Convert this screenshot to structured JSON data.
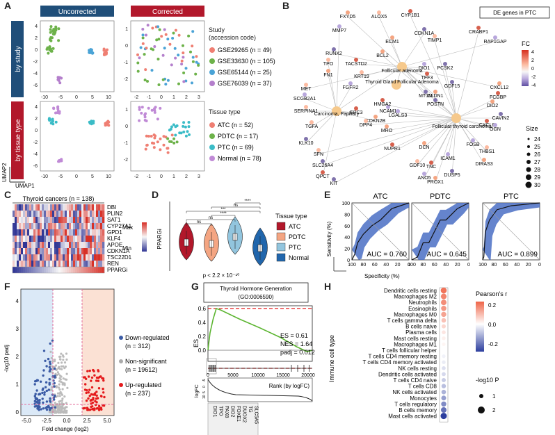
{
  "panel_letters": [
    "A",
    "B",
    "C",
    "D",
    "E",
    "F",
    "G",
    "H"
  ],
  "A": {
    "col_headers": [
      "Uncorrected",
      "Corrected"
    ],
    "row_labels": [
      "by study",
      "by tissue type"
    ],
    "xaxis": "UMAP1",
    "yaxis": "UMAP2",
    "unc_xticks": [
      "-10",
      "-5",
      "0",
      "5",
      "10"
    ],
    "cor_xticks": [
      "-2",
      "-1",
      "0",
      "1",
      "2",
      "3"
    ],
    "unc_yticks": [
      "4",
      "2",
      "0",
      "-2",
      "-4",
      "-6"
    ],
    "cor_yticks": [
      "1",
      "0",
      "-1",
      "-2"
    ],
    "study_title_line1": "Study",
    "study_title_line2": "(accession code)",
    "study_legend": [
      {
        "label": "GSE29265 (n = 49)",
        "color": "#ef7f73"
      },
      {
        "label": "GSE33630 (n = 105)",
        "color": "#6db24a"
      },
      {
        "label": "GSE65144 (n = 25)",
        "color": "#4aa3d6"
      },
      {
        "label": "GSE76039 (n = 37)",
        "color": "#b47fcc"
      }
    ],
    "tissue_title": "Tissue type",
    "tissue_legend": [
      {
        "label": "ATC (n = 52)",
        "color": "#ef7f73"
      },
      {
        "label": "PDTC (n = 17)",
        "color": "#6db24a"
      },
      {
        "label": "PTC (n = 69)",
        "color": "#3bbcc7"
      },
      {
        "label": "Normal (n = 78)",
        "color": "#c08ad6"
      }
    ],
    "header_blue": "#1f4e79",
    "header_red": "#b2182b"
  },
  "B": {
    "title": "DE genes in PTC",
    "hubs": [
      "Follicular adenoma",
      "Thyroid Gland Follicular Adenoma",
      "Carcinoma, Papillary",
      "Follicular thyroid carcinoma"
    ],
    "genes": [
      "FXYD5",
      "ALOX5",
      "CYP1B1",
      "MMP7",
      "CDKN1A",
      "ECM1",
      "TIMP1",
      "CRABP1",
      "RAP1GAP",
      "RUNX2",
      "BCL2",
      "TPO",
      "TACSTD2",
      "DIO1",
      "PCSK2",
      "FN1",
      "KRT19",
      "TFF3",
      "FGFR2",
      "GDF15",
      "CXCL12",
      "MET",
      "FCGBP",
      "SCGB2A1",
      "MT1M",
      "CLDN1",
      "SERPINA1",
      "GPC3",
      "NCAM1",
      "POSTN",
      "DIO2",
      "TGFA",
      "HMGA2",
      "LGALS3",
      "CAVIN2",
      "CDKN2B",
      "DPP4",
      "CXCL8",
      "OGN",
      "KLK10",
      "MRO",
      "SFN",
      "NUPR1",
      "FOSB",
      "SLC26A4",
      "DCN",
      "THBS1",
      "QPCT",
      "ICAM1",
      "KIT",
      "DIRAS3",
      "GDF10",
      "TNC",
      "ANO5",
      "DUSP5",
      "PROX1"
    ],
    "fc_title": "FC",
    "fc_ticks": [
      "4",
      "2",
      "0",
      "-2",
      "-4"
    ],
    "size_title": "Size",
    "size_ticks": [
      "24",
      "25",
      "26",
      "27",
      "28",
      "29",
      "30"
    ]
  },
  "C": {
    "title": "Thyroid cancers (n = 138)",
    "genes": [
      "DBI",
      "PLIN2",
      "SAT1",
      "CYP27A1",
      "GPD1",
      "KLF4",
      "APOE",
      "CDKN1A",
      "TSC22D1",
      "REN",
      "PPARGi"
    ],
    "max_label": "Max",
    "min_label": "Min"
  },
  "D": {
    "ylabel": "PPARGi",
    "legend_title": "Tissue type",
    "legend": [
      {
        "label": "ATC",
        "color": "#b2182b"
      },
      {
        "label": "PDTC",
        "color": "#f4a582"
      },
      {
        "label": "PTC",
        "color": "#92c5de"
      },
      {
        "label": "Normal",
        "color": "#2166ac"
      }
    ],
    "sig_labels": [
      "ns",
      "ns",
      "****",
      "***",
      "ns",
      "****"
    ],
    "pvalue": "p < 2.2 × 10⁻¹⁰"
  },
  "E": {
    "panels": [
      {
        "title": "ATC",
        "auc": "AUC = 0.760"
      },
      {
        "title": "PDTC",
        "auc": "AUC = 0.645"
      },
      {
        "title": "PTC",
        "auc": "AUC = 0.899"
      }
    ],
    "yticks": [
      "100",
      "80",
      "60",
      "40",
      "20",
      "0"
    ],
    "xticks": [
      "100",
      "80",
      "60",
      "40",
      "20",
      "0"
    ],
    "ylabel": "Sensitivity (%)",
    "xlabel": "Specificity (%)"
  },
  "F": {
    "ylabel": "-log10 padj",
    "xlabel": "Fold change (log2)",
    "xticks": [
      "-5.0",
      "-2.5",
      "0.0",
      "2.5",
      "5.0"
    ],
    "yticks": [
      "4",
      "3",
      "2",
      "1",
      "0"
    ],
    "legend": [
      {
        "label": "Down-regulated",
        "n": "(n = 312)",
        "color": "#3b5ba5"
      },
      {
        "label": "Non-significant",
        "n": "(n = 19612)",
        "color": "#aaaaaa"
      },
      {
        "label": "Up-regulated",
        "n": "(n = 237)",
        "color": "#e41a1c"
      }
    ]
  },
  "G": {
    "title_line1": "Thyroid Hormone Generation",
    "title_line2": "(GO:0006590)",
    "es": "ES = 0.61",
    "nes": "NES = 1.64",
    "padj": "padj = 0.012",
    "ylabel": "ES",
    "yticks": [
      "0.6",
      "0.4",
      "0.2",
      "0.0"
    ],
    "xticks": [
      "0",
      "5000",
      "10000",
      "15000",
      "20000"
    ],
    "xlabel": "Rank (by logFC)",
    "logfc_label": "logFC",
    "logfc_ticks": [
      "10",
      "5",
      "0",
      "-5"
    ],
    "genes": [
      "DIO1",
      "TPO",
      "PAX8",
      "DIO2",
      "FOXE1",
      "DUOX2",
      "TG",
      "SLC5A5"
    ]
  },
  "H": {
    "ylabel": "Immune cell type",
    "cells": [
      "Dendritic cells resting",
      "Macrophages M2",
      "Neutrophils",
      "Eosinophils",
      "Macrophages M0",
      "T cells gamma delta",
      "B cells naive",
      "Plasma cells",
      "Mast cells resting",
      "Macrophages M1",
      "T cells follicular helper",
      "T cells CD4 memory resting",
      "T cells CD4 memory activated",
      "NK cells resting",
      "Dendritic cells activated",
      "T cells CD4 naive",
      "T cells CD8",
      "NK cells activated",
      "Monocytes",
      "T cells regulatory",
      "B cells memory",
      "Mast cells activated"
    ],
    "r_values": [
      0.27,
      0.24,
      0.22,
      0.2,
      0.18,
      0.12,
      0.08,
      0.05,
      0.03,
      0.02,
      0.0,
      -0.02,
      -0.03,
      -0.05,
      -0.06,
      -0.08,
      -0.1,
      -0.12,
      -0.15,
      -0.18,
      -0.22,
      -0.31
    ],
    "corr_title": "Pearson's r",
    "corr_ticks": [
      "0.2",
      "0.0",
      "-0.2"
    ],
    "size_title": "-log10 P",
    "size_ticks": [
      "1",
      "2"
    ]
  }
}
